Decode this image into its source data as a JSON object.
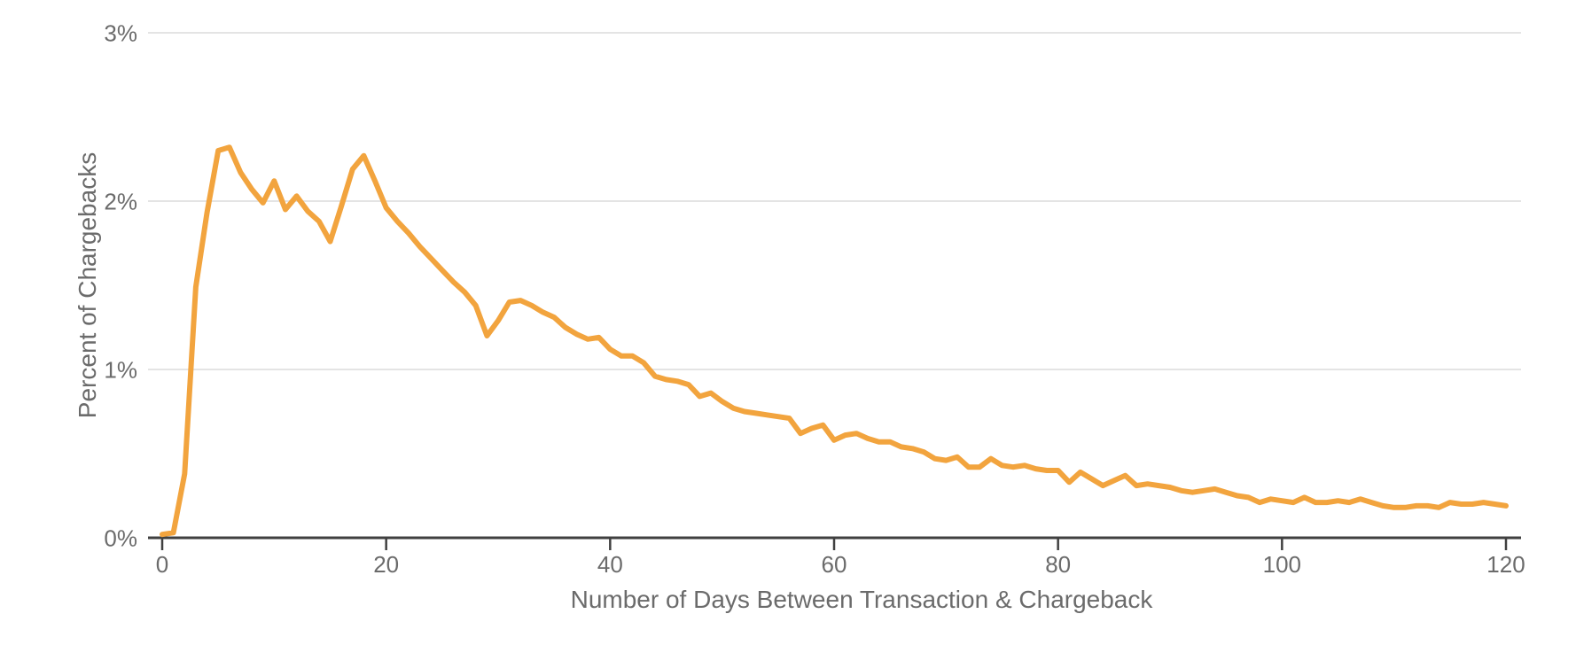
{
  "chart_data": {
    "type": "line",
    "title": "",
    "xlabel": "Number of Days Between Transaction & Chargeback",
    "ylabel": "Percent of Chargebacks",
    "legend_position": "none",
    "grid": "horizontal",
    "xlim": [
      0,
      120
    ],
    "ylim": [
      0,
      3
    ],
    "x_ticks": [
      0,
      20,
      40,
      60,
      80,
      100,
      120
    ],
    "y_ticks": [
      "0%",
      "1%",
      "2%",
      "3%"
    ],
    "y_tick_values": [
      0,
      1,
      2,
      3
    ],
    "line_color": "#F2A43E",
    "axis_color": "#404040",
    "grid_color": "#E4E4E4",
    "label_color": "#6B6B6B",
    "series_name": "Percent of Chargebacks",
    "x": [
      0,
      1,
      2,
      3,
      4,
      5,
      6,
      7,
      8,
      9,
      10,
      11,
      12,
      13,
      14,
      15,
      16,
      17,
      18,
      19,
      20,
      21,
      22,
      23,
      24,
      25,
      26,
      27,
      28,
      29,
      30,
      31,
      32,
      33,
      34,
      35,
      36,
      37,
      38,
      39,
      40,
      41,
      42,
      43,
      44,
      45,
      46,
      47,
      48,
      49,
      50,
      51,
      52,
      53,
      54,
      55,
      56,
      57,
      58,
      59,
      60,
      61,
      62,
      63,
      64,
      65,
      66,
      67,
      68,
      69,
      70,
      71,
      72,
      73,
      74,
      75,
      76,
      77,
      78,
      79,
      80,
      81,
      82,
      83,
      84,
      85,
      86,
      87,
      88,
      89,
      90,
      91,
      92,
      93,
      94,
      95,
      96,
      97,
      98,
      99,
      100,
      101,
      102,
      103,
      104,
      105,
      106,
      107,
      108,
      109,
      110,
      111,
      112,
      113,
      114,
      115,
      116,
      117,
      118,
      119,
      120
    ],
    "y": [
      0.02,
      0.03,
      0.38,
      1.49,
      1.93,
      2.3,
      2.32,
      2.17,
      2.07,
      1.99,
      2.12,
      1.95,
      2.03,
      1.94,
      1.88,
      1.76,
      1.97,
      2.19,
      2.27,
      2.12,
      1.96,
      1.88,
      1.81,
      1.73,
      1.66,
      1.59,
      1.52,
      1.46,
      1.38,
      1.2,
      1.29,
      1.4,
      1.41,
      1.38,
      1.34,
      1.31,
      1.25,
      1.21,
      1.18,
      1.19,
      1.12,
      1.08,
      1.08,
      1.04,
      0.96,
      0.94,
      0.93,
      0.91,
      0.84,
      0.86,
      0.81,
      0.77,
      0.75,
      0.74,
      0.73,
      0.72,
      0.71,
      0.62,
      0.65,
      0.67,
      0.58,
      0.61,
      0.62,
      0.59,
      0.57,
      0.57,
      0.54,
      0.53,
      0.51,
      0.47,
      0.46,
      0.48,
      0.42,
      0.42,
      0.47,
      0.43,
      0.42,
      0.43,
      0.41,
      0.4,
      0.4,
      0.33,
      0.39,
      0.35,
      0.31,
      0.34,
      0.37,
      0.31,
      0.32,
      0.31,
      0.3,
      0.28,
      0.27,
      0.28,
      0.29,
      0.27,
      0.25,
      0.24,
      0.21,
      0.23,
      0.22,
      0.21,
      0.24,
      0.21,
      0.21,
      0.22,
      0.21,
      0.23,
      0.21,
      0.19,
      0.18,
      0.18,
      0.19,
      0.19,
      0.18,
      0.21,
      0.2,
      0.2,
      0.21,
      0.2,
      0.19
    ]
  }
}
